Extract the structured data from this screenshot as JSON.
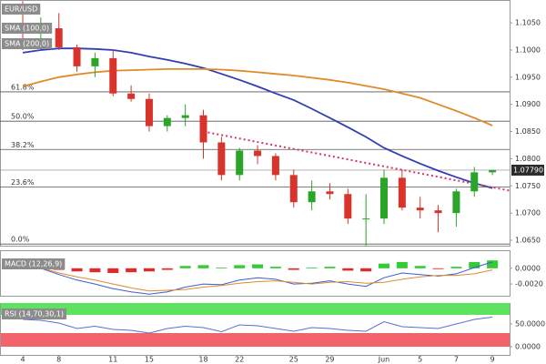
{
  "chart_data": [
    {
      "type": "candlestick",
      "title": "EUR/USD",
      "categories": [
        "4",
        null,
        "8",
        null,
        null,
        "11",
        null,
        "15",
        null,
        null,
        "18",
        null,
        "22",
        null,
        null,
        "25",
        null,
        "29",
        null,
        null,
        "Jun",
        null,
        "5",
        null,
        "7",
        null,
        "9"
      ],
      "open": [
        1.105,
        1.103,
        1.104,
        1.1005,
        1.097,
        1.0985,
        1.092,
        1.091,
        1.086,
        1.0875,
        1.088,
        1.083,
        1.077,
        1.0815,
        1.0805,
        1.077,
        1.072,
        1.074,
        1.0735,
        1.069,
        1.069,
        1.0765,
        1.071,
        1.0705,
        1.07,
        1.074,
        1.0775
      ],
      "high": [
        1.109,
        1.106,
        1.1068,
        1.101,
        1.0995,
        1.1,
        1.0935,
        1.092,
        1.088,
        1.09,
        1.089,
        1.084,
        1.082,
        1.0825,
        1.081,
        1.078,
        1.076,
        1.0755,
        1.0745,
        1.0735,
        1.078,
        1.078,
        1.073,
        1.0715,
        1.0745,
        1.0785,
        1.078
      ],
      "low": [
        1.1,
        1.101,
        1.1,
        1.096,
        1.095,
        1.0915,
        1.0905,
        1.085,
        1.085,
        1.086,
        1.08,
        1.076,
        1.076,
        1.079,
        1.076,
        1.071,
        1.0705,
        1.0725,
        1.068,
        1.064,
        1.068,
        1.0705,
        1.069,
        1.0665,
        1.0675,
        1.073,
        1.077
      ],
      "close": [
        1.103,
        1.104,
        1.1005,
        1.097,
        1.0985,
        1.092,
        1.091,
        1.086,
        1.0875,
        1.088,
        1.083,
        1.077,
        1.0815,
        1.0805,
        1.077,
        1.072,
        1.074,
        1.0735,
        1.069,
        1.069,
        1.0765,
        1.071,
        1.0705,
        1.07,
        1.074,
        1.0775,
        1.0779
      ],
      "up_color": "#2aa52a",
      "down_color": "#d9342b",
      "series": [
        {
          "name": "SMA (100,0)",
          "color": "#2f3fb3",
          "values": [
            1.0995,
            1.1,
            1.1003,
            1.1003,
            1.1002,
            1.1,
            1.0995,
            1.0988,
            1.0982,
            1.0975,
            1.0967,
            1.0956,
            1.0945,
            1.0933,
            1.092,
            1.0908,
            1.0892,
            1.0875,
            1.0858,
            1.084,
            1.082,
            1.0805,
            1.0791,
            1.0778,
            1.0766,
            1.0755,
            1.0746
          ]
        },
        {
          "name": "SMA (200,0)",
          "color": "#e08a2b",
          "values": [
            1.0933,
            1.0942,
            1.095,
            1.0955,
            1.0959,
            1.0962,
            1.0963,
            1.0964,
            1.0965,
            1.0965,
            1.0965,
            1.0964,
            1.0962,
            1.0959,
            1.0956,
            1.0953,
            1.0949,
            1.0945,
            1.094,
            1.0934,
            1.0928,
            1.092,
            1.0912,
            1.09,
            1.0888,
            1.0875,
            1.0861
          ]
        }
      ],
      "ylim": [
        1.064,
        1.1092
      ],
      "yticks": [
        {
          "value": 1.065,
          "label": "1.0650"
        },
        {
          "value": 1.07,
          "label": "1.0700"
        },
        {
          "value": 1.075,
          "label": "1.0750"
        },
        {
          "value": 1.08,
          "label": "1.0800"
        },
        {
          "value": 1.085,
          "label": "1.0850"
        },
        {
          "value": 1.09,
          "label": "1.0900"
        },
        {
          "value": 1.095,
          "label": "1.0950"
        },
        {
          "value": 1.1,
          "label": "1.1000"
        },
        {
          "value": 1.105,
          "label": "1.1050"
        }
      ],
      "fib_levels": [
        {
          "value": 1.0923,
          "label": "61.8%"
        },
        {
          "value": 1.0869,
          "label": "50.0%"
        },
        {
          "value": 1.0817,
          "label": "38.2%"
        },
        {
          "value": 1.0748,
          "label": "23.6%"
        },
        {
          "value": 1.0643,
          "label": "0.0%"
        }
      ],
      "last_price": {
        "value": 1.0779,
        "label": "1.07790"
      },
      "trendline": {
        "x": [
          10,
          27
        ],
        "y": [
          1.085,
          1.0741
        ],
        "color": "#d6336c"
      }
    },
    {
      "type": "macd",
      "title": "MACD (12,26,9)",
      "histogram": [
        0.0002,
        -0.0001,
        -0.0002,
        -0.0004,
        -0.0005,
        -0.0006,
        -0.0005,
        -0.0004,
        -0.0002,
        0.0003,
        0.0004,
        0.0001,
        0.0004,
        0.0005,
        0.0002,
        -0.0002,
        0.0001,
        0.0002,
        -0.0003,
        -0.0004,
        0.0006,
        0.0008,
        0.0003,
        -0.0001,
        0.0002,
        0.0008,
        0.001
      ],
      "macd": [
        0.0003,
        0.0,
        -0.0008,
        -0.0015,
        -0.002,
        -0.0026,
        -0.003,
        -0.0033,
        -0.003,
        -0.0024,
        -0.002,
        -0.0021,
        -0.0015,
        -0.0012,
        -0.0014,
        -0.002,
        -0.0019,
        -0.0016,
        -0.002,
        -0.0023,
        -0.0012,
        -0.0006,
        -0.0008,
        -0.001,
        -0.0007,
        0.0001,
        0.0008
      ],
      "signal": [
        0.0001,
        0.0001,
        -0.0006,
        -0.0011,
        -0.0015,
        -0.002,
        -0.0025,
        -0.0029,
        -0.0028,
        -0.0027,
        -0.0024,
        -0.0022,
        -0.0019,
        -0.0017,
        -0.0016,
        -0.0018,
        -0.002,
        -0.0018,
        -0.0017,
        -0.0019,
        -0.0018,
        -0.0014,
        -0.0011,
        -0.0009,
        -0.0009,
        -0.0007,
        -0.0002
      ],
      "macd_color": "#3b5bd6",
      "signal_color": "#e08a2b",
      "hist_up_color": "#33cc33",
      "hist_down_color": "#e02b2b",
      "ylim": [
        -0.0035,
        0.0023
      ],
      "yticks": [
        {
          "value": 0,
          "label": "0.0000"
        },
        {
          "value": -0.002,
          "label": "-0.0020"
        }
      ]
    },
    {
      "type": "line",
      "title": "RSI (14,70,30,1)",
      "values": [
        60,
        58,
        52,
        40,
        45,
        38,
        36,
        30,
        40,
        45,
        42,
        33,
        48,
        46,
        40,
        34,
        42,
        40,
        36,
        34,
        55,
        44,
        42,
        40,
        50,
        60,
        65
      ],
      "color": "#5b6fd0",
      "ylim": [
        -18,
        96
      ],
      "yticks": [
        {
          "value": 50,
          "label": "50.0000"
        },
        {
          "value": 0,
          "label": "0.0000"
        }
      ],
      "bands": [
        {
          "from": 70,
          "to": 96,
          "color": "#5ee35e"
        },
        {
          "from": 0,
          "to": 30,
          "color": "#f2636b"
        }
      ]
    }
  ]
}
